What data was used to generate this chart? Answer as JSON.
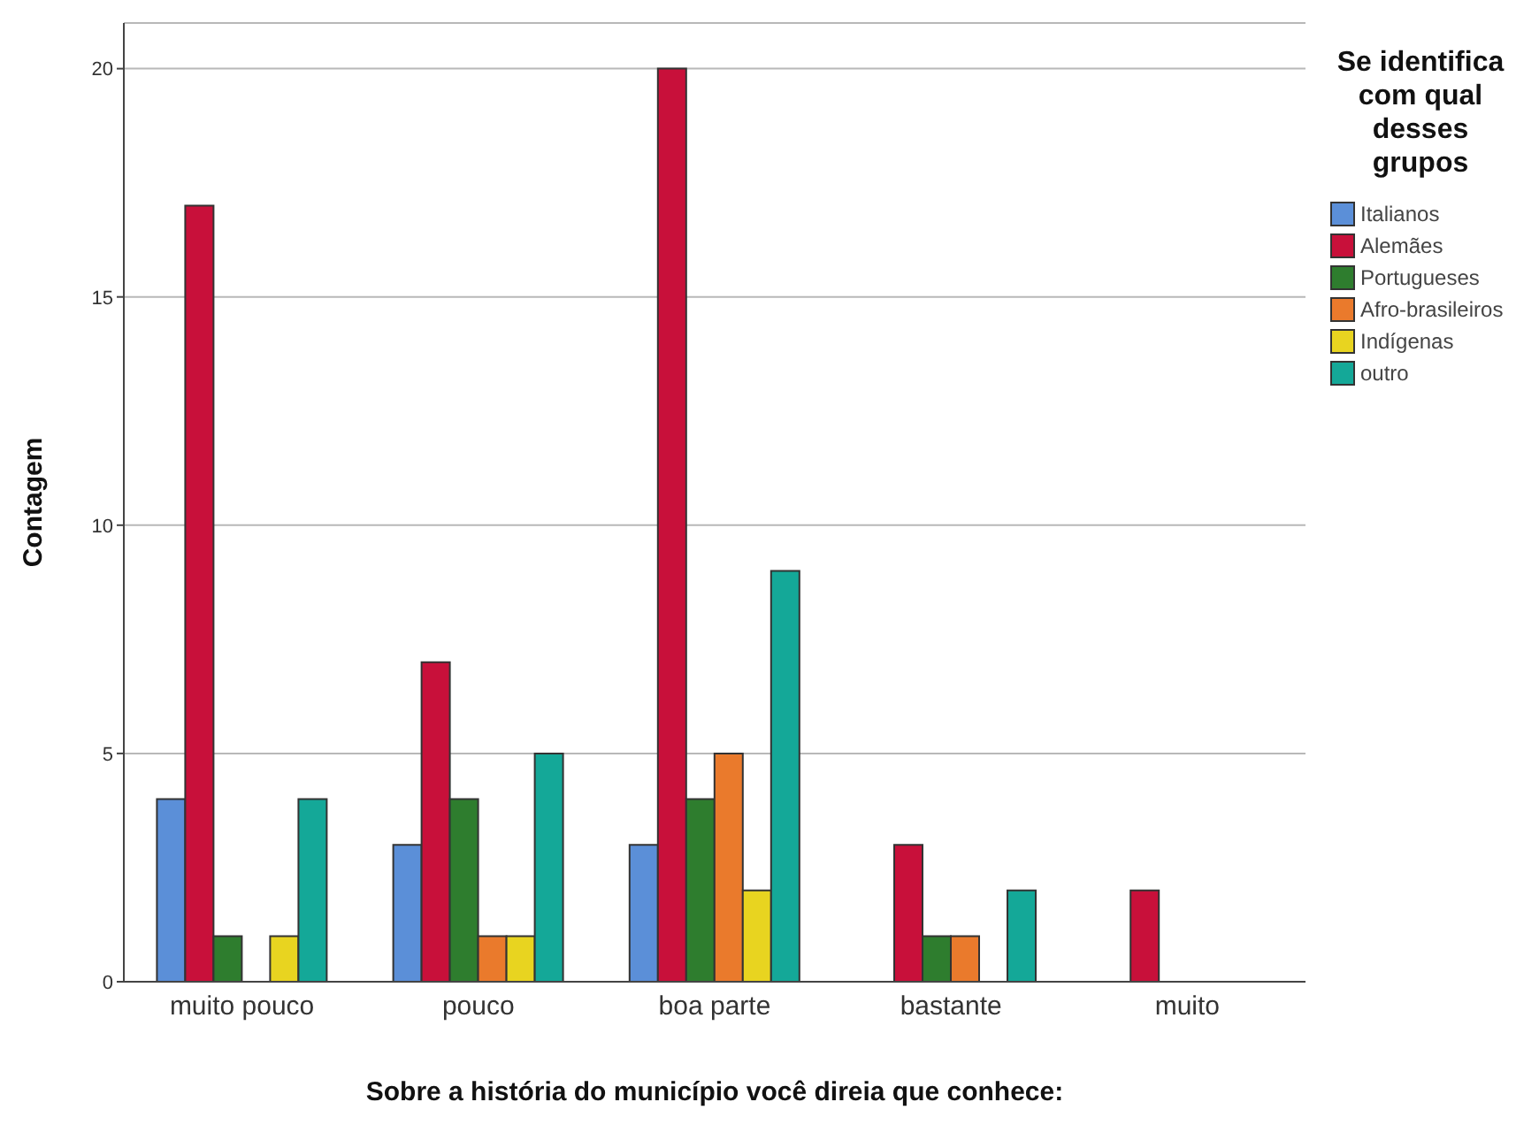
{
  "chart_data": {
    "type": "bar",
    "xlabel": "Sobre a história do município você direia que conhece:",
    "ylabel": "Contagem",
    "legend_title": "Se identifica com qual desses grupos",
    "categories": [
      "muito pouco",
      "pouco",
      "boa parte",
      "bastante",
      "muito"
    ],
    "series": [
      {
        "name": "Italianos",
        "color": "#5b8fd8",
        "values": [
          4,
          3,
          3,
          0,
          0
        ]
      },
      {
        "name": "Alemães",
        "color": "#c8103a",
        "values": [
          17,
          7,
          20,
          3,
          2
        ]
      },
      {
        "name": "Portugueses",
        "color": "#2e7d2e",
        "values": [
          1,
          4,
          4,
          1,
          0
        ]
      },
      {
        "name": "Afro-brasileiros",
        "color": "#ea7a2c",
        "values": [
          0,
          1,
          5,
          1,
          0
        ]
      },
      {
        "name": "Indígenas",
        "color": "#e8d420",
        "values": [
          1,
          1,
          2,
          0,
          0
        ]
      },
      {
        "name": "outro",
        "color": "#14a898",
        "values": [
          4,
          5,
          9,
          2,
          0
        ]
      }
    ],
    "ylim": [
      0,
      21
    ],
    "yticks": [
      0,
      5,
      10,
      15,
      20
    ],
    "grid": "y",
    "legend": "top right"
  }
}
